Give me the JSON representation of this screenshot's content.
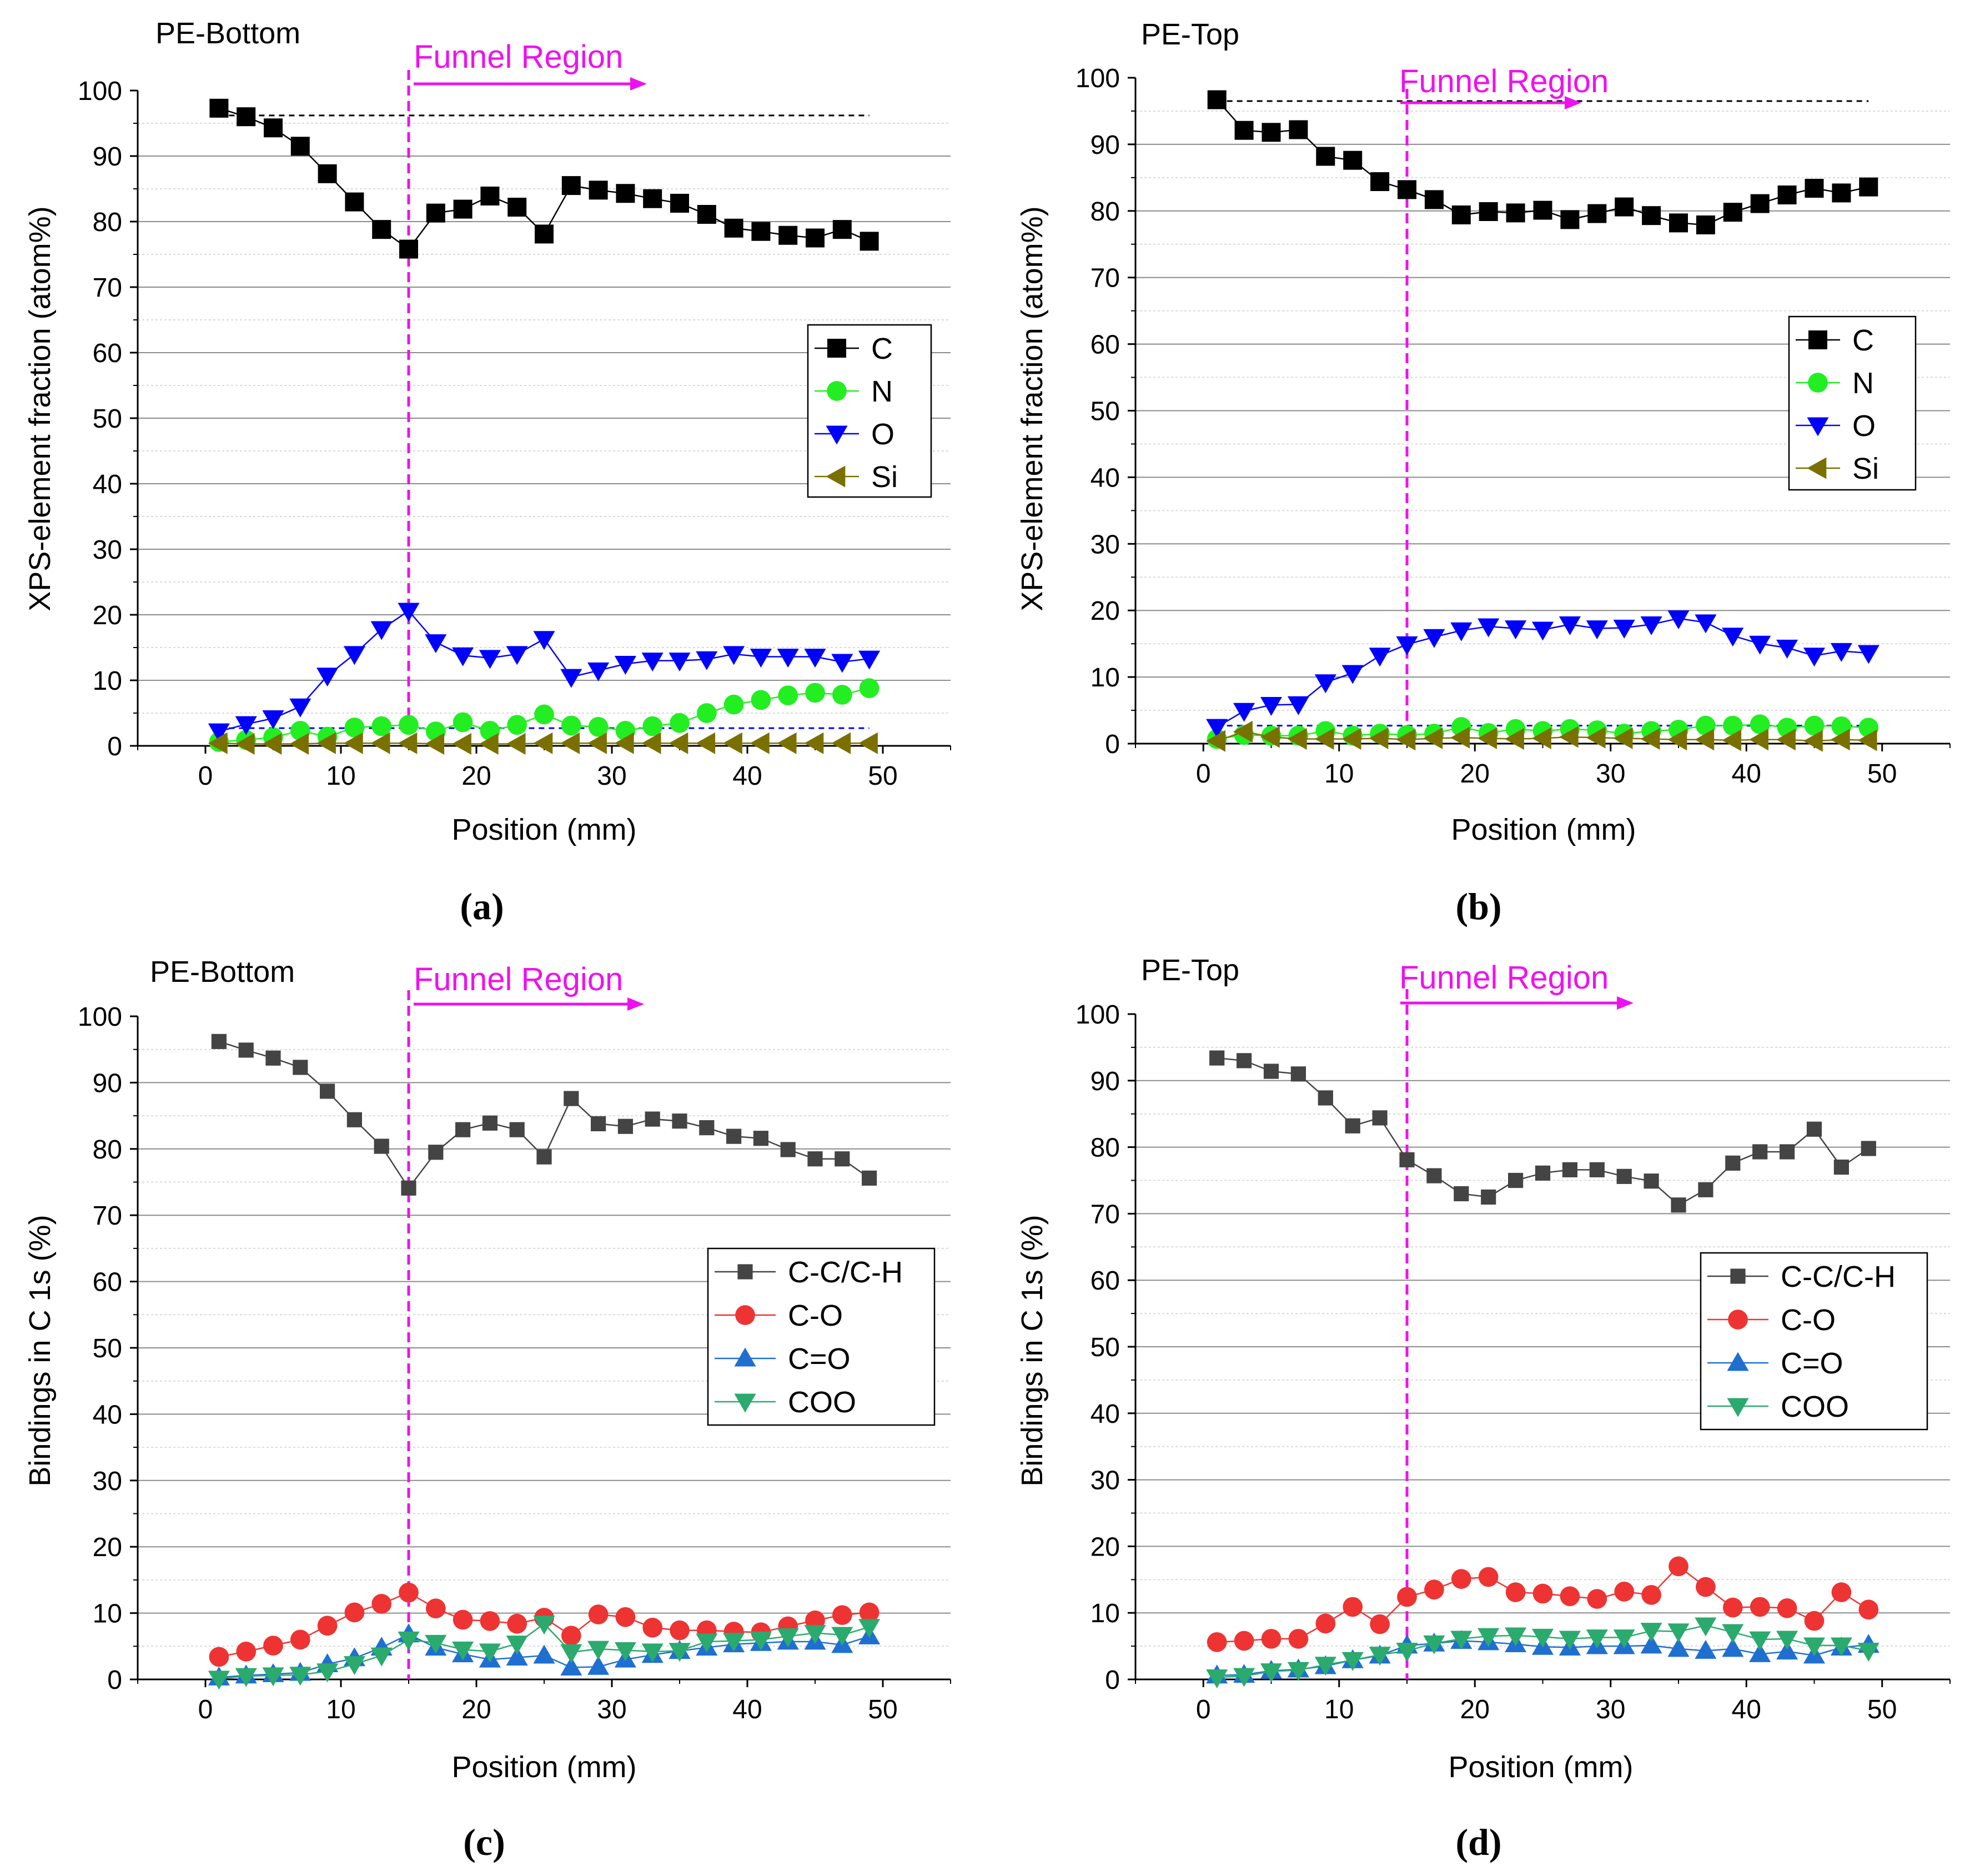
{
  "figure": {
    "vline_at": 15,
    "colors": {
      "vline": "#EE11EE",
      "region_text": "#EE11EE",
      "axis": "#000000",
      "grid": "#8C8C8C",
      "minor_grid": "#D9D9D9",
      "dash_black": "#000000",
      "dash_blue": "#0000FF"
    }
  },
  "chart_data": [
    {
      "id": "a",
      "type": "line",
      "panel_label": "PE-Bottom",
      "region_label": "Funnel Region",
      "caption": "(a)",
      "xlabel": "Position (mm)",
      "ylabel": "XPS-element fraction (atom%)",
      "xlim": [
        -5,
        55
      ],
      "ylim": [
        0,
        100
      ],
      "xticks": [
        0,
        10,
        20,
        30,
        40,
        50
      ],
      "yticks": [
        0,
        10,
        20,
        30,
        40,
        50,
        60,
        70,
        80,
        90,
        100
      ],
      "reference_lines": [
        {
          "y": 96.2,
          "x": [
            1,
            49
          ],
          "color": "#000000"
        },
        {
          "y": 2.7,
          "x": [
            1,
            49
          ],
          "color": "#0000FF"
        }
      ],
      "x": [
        1,
        3,
        5,
        7,
        9,
        11,
        13,
        15,
        17,
        19,
        21,
        23,
        25,
        27,
        29,
        31,
        33,
        35,
        37,
        39,
        41,
        43,
        45,
        47,
        49
      ],
      "series": [
        {
          "name": "C",
          "marker": "square",
          "color": "#000000",
          "line": "#000000",
          "values": [
            97.3,
            96.0,
            94.3,
            91.5,
            87.3,
            83.0,
            78.8,
            75.8,
            81.3,
            81.9,
            83.9,
            82.2,
            78.1,
            85.5,
            84.8,
            84.3,
            83.5,
            82.8,
            81.1,
            79.0,
            78.5,
            77.9,
            77.5,
            78.8,
            77.0
          ]
        },
        {
          "name": "N",
          "marker": "circle",
          "color": "#22EE22",
          "line": "#22EE22",
          "values": [
            0.6,
            0.9,
            1.3,
            2.3,
            1.4,
            2.8,
            3.0,
            3.2,
            2.2,
            3.6,
            2.3,
            3.2,
            4.8,
            3.1,
            2.9,
            2.3,
            3.0,
            3.5,
            5.0,
            6.3,
            7.0,
            7.7,
            8.1,
            7.8,
            8.8
          ]
        },
        {
          "name": "O",
          "marker": "triangle-down",
          "color": "#0000FF",
          "line": "#0000FF",
          "values": [
            2.2,
            3.3,
            4.2,
            6.0,
            10.7,
            14.0,
            17.8,
            20.6,
            15.8,
            13.8,
            13.4,
            14.0,
            16.3,
            10.5,
            11.5,
            12.5,
            13.0,
            13.0,
            13.2,
            14.0,
            13.6,
            13.6,
            13.6,
            12.8,
            13.3
          ]
        },
        {
          "name": "Si",
          "marker": "triangle-left",
          "color": "#7A7000",
          "line": "#7A7000",
          "values": [
            0.4,
            0.3,
            0.3,
            0.3,
            0.4,
            0.4,
            0.4,
            0.4,
            0.3,
            0.3,
            0.3,
            0.3,
            0.4,
            0.4,
            0.4,
            0.4,
            0.4,
            0.4,
            0.4,
            0.4,
            0.4,
            0.4,
            0.4,
            0.4,
            0.4
          ]
        }
      ]
    },
    {
      "id": "b",
      "type": "line",
      "panel_label": "PE-Top",
      "region_label": "Funnel Region",
      "caption": "(b)",
      "xlabel": "Position (mm)",
      "ylabel": "XPS-element fraction (atom%)",
      "xlim": [
        -5,
        55
      ],
      "ylim": [
        0,
        100
      ],
      "xticks": [
        0,
        10,
        20,
        30,
        40,
        50
      ],
      "yticks": [
        0,
        10,
        20,
        30,
        40,
        50,
        60,
        70,
        80,
        90,
        100
      ],
      "reference_lines": [
        {
          "y": 96.5,
          "x": [
            1,
            49
          ],
          "color": "#000000"
        },
        {
          "y": 2.7,
          "x": [
            1,
            49
          ],
          "color": "#0000FF"
        }
      ],
      "x": [
        1,
        3,
        5,
        7,
        9,
        11,
        13,
        15,
        17,
        19,
        21,
        23,
        25,
        27,
        29,
        31,
        33,
        35,
        37,
        39,
        41,
        43,
        45,
        47,
        49
      ],
      "series": [
        {
          "name": "C",
          "marker": "square",
          "color": "#000000",
          "line": "#000000",
          "values": [
            96.7,
            92.1,
            91.8,
            92.2,
            88.2,
            87.6,
            84.4,
            83.2,
            81.7,
            79.4,
            79.9,
            79.7,
            80.1,
            78.7,
            79.6,
            80.6,
            79.3,
            78.2,
            77.9,
            79.8,
            81.1,
            82.4,
            83.4,
            82.7,
            83.6
          ]
        },
        {
          "name": "N",
          "marker": "circle",
          "color": "#22EE22",
          "line": "#22EE22",
          "values": [
            0.7,
            1.3,
            1.2,
            1.2,
            1.9,
            1.2,
            1.5,
            1.3,
            1.5,
            2.5,
            1.6,
            2.2,
            1.9,
            2.2,
            2.0,
            1.5,
            1.9,
            2.1,
            2.7,
            2.7,
            2.9,
            2.4,
            2.7,
            2.6,
            2.4
          ]
        },
        {
          "name": "O",
          "marker": "triangle-down",
          "color": "#0000FF",
          "line": "#0000FF",
          "values": [
            2.5,
            4.9,
            5.8,
            5.9,
            9.2,
            10.6,
            13.2,
            14.9,
            16.0,
            17.0,
            17.6,
            17.3,
            17.1,
            17.9,
            17.3,
            17.4,
            17.9,
            18.8,
            18.2,
            16.2,
            15.0,
            14.4,
            13.2,
            13.9,
            13.6
          ]
        },
        {
          "name": "Si",
          "marker": "triangle-left",
          "color": "#7A7000",
          "line": "#7A7000",
          "values": [
            0.4,
            1.8,
            1.0,
            0.7,
            0.7,
            0.7,
            0.8,
            0.6,
            0.8,
            0.9,
            0.8,
            0.7,
            0.8,
            1.0,
            0.9,
            0.8,
            0.7,
            0.6,
            0.6,
            0.5,
            0.6,
            0.6,
            0.4,
            0.6,
            0.5
          ]
        }
      ]
    },
    {
      "id": "c",
      "type": "line",
      "panel_label": "PE-Bottom",
      "region_label": "Funnel Region",
      "caption": "(c)",
      "xlabel": "Position (mm)",
      "ylabel": "Bindings in C 1s (%)",
      "xlim": [
        -5,
        55
      ],
      "ylim": [
        0,
        100
      ],
      "xticks": [
        0,
        10,
        20,
        30,
        40,
        50
      ],
      "yticks": [
        0,
        10,
        20,
        30,
        40,
        50,
        60,
        70,
        80,
        90,
        100
      ],
      "reference_lines": [],
      "x": [
        1,
        3,
        5,
        7,
        9,
        11,
        13,
        15,
        17,
        19,
        21,
        23,
        25,
        27,
        29,
        31,
        33,
        35,
        37,
        39,
        41,
        43,
        45,
        47,
        49
      ],
      "series": [
        {
          "name": "C-C/C-H",
          "marker": "square-small",
          "color": "#444444",
          "line": "#444444",
          "values": [
            96.2,
            94.9,
            93.7,
            92.3,
            88.7,
            84.4,
            80.4,
            74.1,
            79.5,
            82.9,
            83.9,
            82.9,
            78.8,
            87.6,
            83.8,
            83.4,
            84.5,
            84.2,
            83.2,
            81.9,
            81.6,
            79.9,
            78.5,
            78.5,
            75.6
          ]
        },
        {
          "name": "C-O",
          "marker": "circle",
          "color": "#EE3333",
          "line": "#EE3333",
          "values": [
            3.4,
            4.2,
            5.1,
            6.0,
            8.1,
            10.1,
            11.4,
            13.1,
            10.7,
            9.0,
            8.8,
            8.4,
            9.3,
            6.6,
            9.8,
            9.4,
            7.8,
            7.4,
            7.4,
            7.2,
            7.1,
            8.0,
            8.9,
            9.7,
            10.1
          ]
        },
        {
          "name": "C=O",
          "marker": "triangle-up",
          "color": "#1F6FD1",
          "line": "#1F6FD1",
          "values": [
            0.3,
            0.6,
            0.8,
            1.0,
            2.3,
            3.2,
            4.8,
            6.8,
            4.8,
            3.8,
            3.0,
            3.3,
            3.6,
            1.8,
            1.9,
            3.0,
            3.7,
            4.3,
            4.8,
            5.3,
            5.5,
            5.7,
            5.7,
            5.2,
            6.5
          ]
        },
        {
          "name": "COO",
          "marker": "triangle-down",
          "color": "#2BAA6E",
          "line": "#2BAA6E",
          "values": [
            0.1,
            0.5,
            0.6,
            0.7,
            1.2,
            2.3,
            3.6,
            6.0,
            5.5,
            4.5,
            4.2,
            5.4,
            8.4,
            4.1,
            4.6,
            4.4,
            4.2,
            4.3,
            5.7,
            5.8,
            6.0,
            6.5,
            7.0,
            6.7,
            7.9
          ]
        }
      ]
    },
    {
      "id": "d",
      "type": "line",
      "panel_label": "PE-Top",
      "region_label": "Funnel Region",
      "caption": "(d)",
      "xlabel": "Position (mm)",
      "ylabel": "Bindings in C 1s (%)",
      "xlim": [
        -5,
        55
      ],
      "ylim": [
        0,
        100
      ],
      "xticks": [
        0,
        10,
        20,
        30,
        40,
        50
      ],
      "yticks": [
        0,
        10,
        20,
        30,
        40,
        50,
        60,
        70,
        80,
        90,
        100
      ],
      "reference_lines": [],
      "x": [
        1,
        3,
        5,
        7,
        9,
        11,
        13,
        15,
        17,
        19,
        21,
        23,
        25,
        27,
        29,
        31,
        33,
        35,
        37,
        39,
        41,
        43,
        45,
        47,
        49
      ],
      "series": [
        {
          "name": "C-C/C-H",
          "marker": "square-small",
          "color": "#444444",
          "line": "#444444",
          "values": [
            93.4,
            93.0,
            91.4,
            91.0,
            87.4,
            83.2,
            84.4,
            78.1,
            75.7,
            73.0,
            72.5,
            75.0,
            76.1,
            76.6,
            76.6,
            75.6,
            74.9,
            71.3,
            73.6,
            77.6,
            79.3,
            79.3,
            82.7,
            77.0,
            79.8
          ]
        },
        {
          "name": "C-O",
          "marker": "circle",
          "color": "#EE3333",
          "line": "#EE3333",
          "values": [
            5.6,
            5.8,
            6.1,
            6.1,
            8.4,
            10.9,
            8.3,
            12.4,
            13.5,
            15.1,
            15.4,
            13.1,
            12.9,
            12.5,
            12.1,
            13.2,
            12.7,
            17.0,
            13.9,
            10.8,
            10.9,
            10.7,
            8.8,
            13.1,
            10.5
          ]
        },
        {
          "name": "C=O",
          "marker": "triangle-up",
          "color": "#1F6FD1",
          "line": "#1F6FD1",
          "values": [
            0.6,
            0.7,
            1.3,
            1.5,
            2.0,
            2.9,
            3.6,
            5.1,
            5.4,
            5.8,
            5.6,
            5.3,
            4.9,
            4.8,
            5.0,
            5.0,
            5.1,
            4.6,
            4.3,
            4.6,
            3.8,
            4.2,
            3.6,
            4.8,
            5.2
          ]
        },
        {
          "name": "COO",
          "marker": "triangle-down",
          "color": "#2BAA6E",
          "line": "#2BAA6E",
          "values": [
            0.3,
            0.5,
            1.2,
            1.4,
            2.2,
            2.9,
            3.7,
            4.3,
            5.4,
            6.1,
            6.5,
            6.6,
            6.4,
            6.1,
            6.3,
            6.3,
            7.3,
            7.2,
            8.1,
            7.1,
            6.0,
            6.1,
            5.1,
            5.1,
            4.3
          ]
        }
      ]
    }
  ]
}
